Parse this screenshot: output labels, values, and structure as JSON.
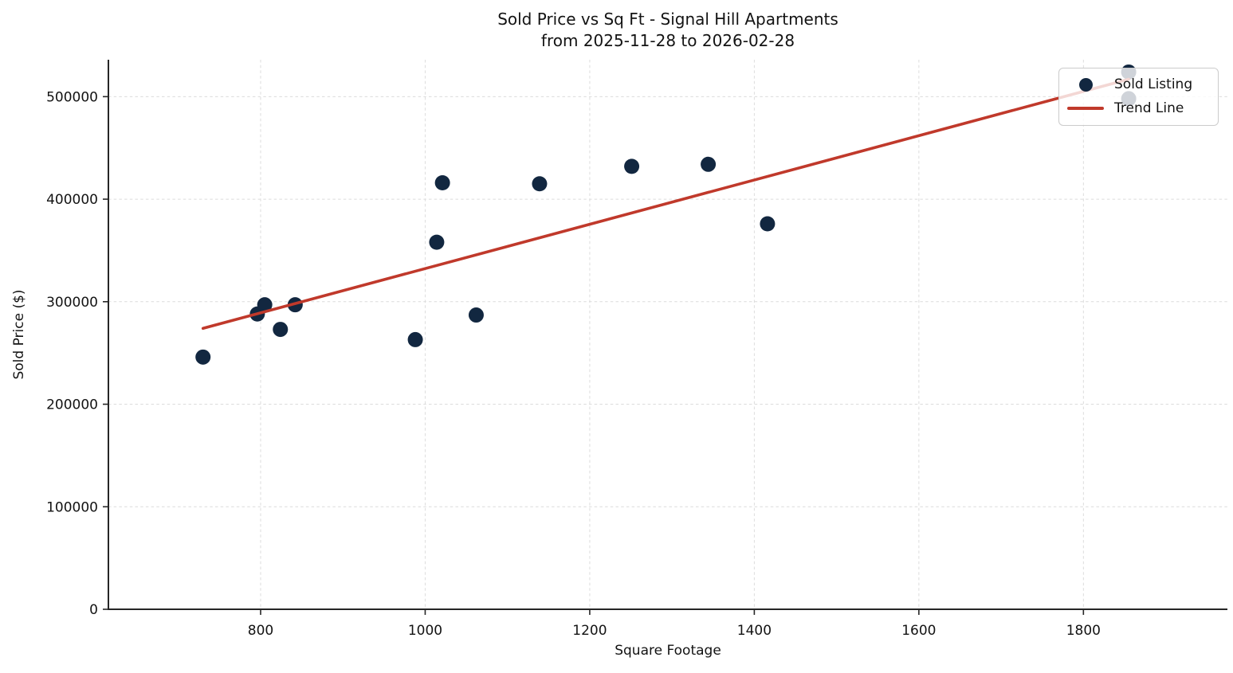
{
  "chart_data": {
    "type": "scatter",
    "title": "Sold Price vs Sq Ft - Signal Hill Apartments\nfrom 2025-11-28 to 2026-02-28",
    "title_line1": "Sold Price vs Sq Ft - Signal Hill Apartments",
    "title_line2": "from 2025-11-28 to 2026-02-28",
    "xlabel": "Square Footage",
    "ylabel": "Sold Price ($)",
    "xlim": [
      615,
      1975
    ],
    "ylim": [
      0,
      536000
    ],
    "x_ticks": [
      800,
      1000,
      1200,
      1400,
      1600,
      1800
    ],
    "y_ticks": [
      0,
      100000,
      200000,
      300000,
      400000,
      500000
    ],
    "grid": true,
    "legend_position": "upper right",
    "series": [
      {
        "name": "Sold Listing",
        "type": "scatter",
        "color": "#122740",
        "marker_radius": 9.5,
        "points": [
          [
            730,
            246000
          ],
          [
            796,
            288000
          ],
          [
            805,
            297000
          ],
          [
            824,
            273000
          ],
          [
            842,
            297000
          ],
          [
            988,
            263000
          ],
          [
            1014,
            358000
          ],
          [
            1021,
            416000
          ],
          [
            1062,
            287000
          ],
          [
            1139,
            415000
          ],
          [
            1251,
            432000
          ],
          [
            1344,
            434000
          ],
          [
            1416,
            376000
          ],
          [
            1855,
            498000
          ],
          [
            1855,
            524000
          ]
        ]
      },
      {
        "name": "Trend Line",
        "type": "line",
        "color": "#c0392b",
        "line_width": 3.6,
        "points": [
          [
            730,
            274000
          ],
          [
            1855,
            517000
          ]
        ]
      }
    ]
  },
  "colors": {
    "background": "#ffffff",
    "grid": "#dcdcdc",
    "spine": "#262626",
    "text": "#131313",
    "scatter": "#122740",
    "trend": "#c0392b"
  }
}
